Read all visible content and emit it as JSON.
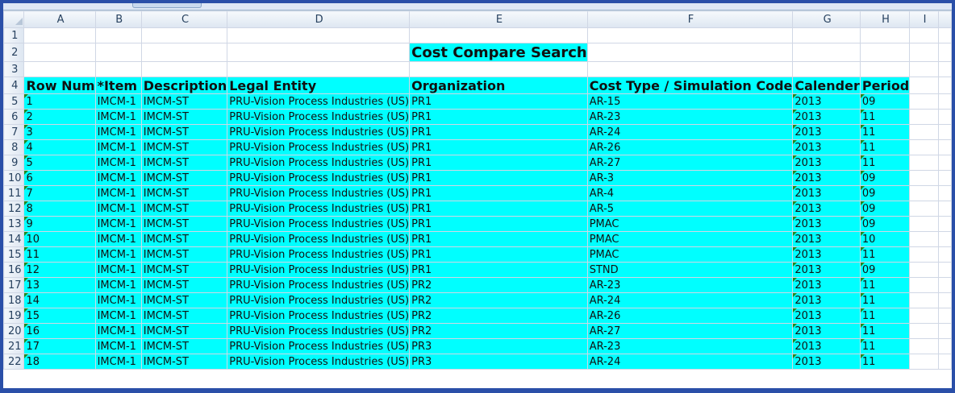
{
  "columns": [
    "A",
    "B",
    "C",
    "D",
    "E",
    "F",
    "G",
    "H",
    "I",
    ""
  ],
  "title": "Cost Compare Search",
  "headers": [
    "Row Num",
    "*Item",
    "Description",
    "Legal Entity",
    "Organization",
    "Cost Type / Simulation Code",
    "Calender",
    "Period"
  ],
  "rows": [
    [
      "1",
      "IMCM-1",
      "IMCM-ST",
      "PRU-Vision Process Industries (US)",
      "PR1",
      "AR-15",
      "2013",
      "09"
    ],
    [
      "2",
      "IMCM-1",
      "IMCM-ST",
      "PRU-Vision Process Industries (US)",
      "PR1",
      "AR-23",
      "2013",
      "11"
    ],
    [
      "3",
      "IMCM-1",
      "IMCM-ST",
      "PRU-Vision Process Industries (US)",
      "PR1",
      "AR-24",
      "2013",
      "11"
    ],
    [
      "4",
      "IMCM-1",
      "IMCM-ST",
      "PRU-Vision Process Industries (US)",
      "PR1",
      "AR-26",
      "2013",
      "11"
    ],
    [
      "5",
      "IMCM-1",
      "IMCM-ST",
      "PRU-Vision Process Industries (US)",
      "PR1",
      "AR-27",
      "2013",
      "11"
    ],
    [
      "6",
      "IMCM-1",
      "IMCM-ST",
      "PRU-Vision Process Industries (US)",
      "PR1",
      "AR-3",
      "2013",
      "09"
    ],
    [
      "7",
      "IMCM-1",
      "IMCM-ST",
      "PRU-Vision Process Industries (US)",
      "PR1",
      "AR-4",
      "2013",
      "09"
    ],
    [
      "8",
      "IMCM-1",
      "IMCM-ST",
      "PRU-Vision Process Industries (US)",
      "PR1",
      "AR-5",
      "2013",
      "09"
    ],
    [
      "9",
      "IMCM-1",
      "IMCM-ST",
      "PRU-Vision Process Industries (US)",
      "PR1",
      "PMAC",
      "2013",
      "09"
    ],
    [
      "10",
      "IMCM-1",
      "IMCM-ST",
      "PRU-Vision Process Industries (US)",
      "PR1",
      "PMAC",
      "2013",
      "10"
    ],
    [
      "11",
      "IMCM-1",
      "IMCM-ST",
      "PRU-Vision Process Industries (US)",
      "PR1",
      "PMAC",
      "2013",
      "11"
    ],
    [
      "12",
      "IMCM-1",
      "IMCM-ST",
      "PRU-Vision Process Industries (US)",
      "PR1",
      "STND",
      "2013",
      "09"
    ],
    [
      "13",
      "IMCM-1",
      "IMCM-ST",
      "PRU-Vision Process Industries (US)",
      "PR2",
      "AR-23",
      "2013",
      "11"
    ],
    [
      "14",
      "IMCM-1",
      "IMCM-ST",
      "PRU-Vision Process Industries (US)",
      "PR2",
      "AR-24",
      "2013",
      "11"
    ],
    [
      "15",
      "IMCM-1",
      "IMCM-ST",
      "PRU-Vision Process Industries (US)",
      "PR2",
      "AR-26",
      "2013",
      "11"
    ],
    [
      "16",
      "IMCM-1",
      "IMCM-ST",
      "PRU-Vision Process Industries (US)",
      "PR2",
      "AR-27",
      "2013",
      "11"
    ],
    [
      "17",
      "IMCM-1",
      "IMCM-ST",
      "PRU-Vision Process Industries (US)",
      "PR3",
      "AR-23",
      "2013",
      "11"
    ],
    [
      "18",
      "IMCM-1",
      "IMCM-ST",
      "PRU-Vision Process Industries (US)",
      "PR3",
      "AR-24",
      "2013",
      "11"
    ]
  ],
  "colors": {
    "cyan": "#00ffff",
    "frame": "#2a4fa8",
    "error_indicator": "#1e8a1e"
  }
}
